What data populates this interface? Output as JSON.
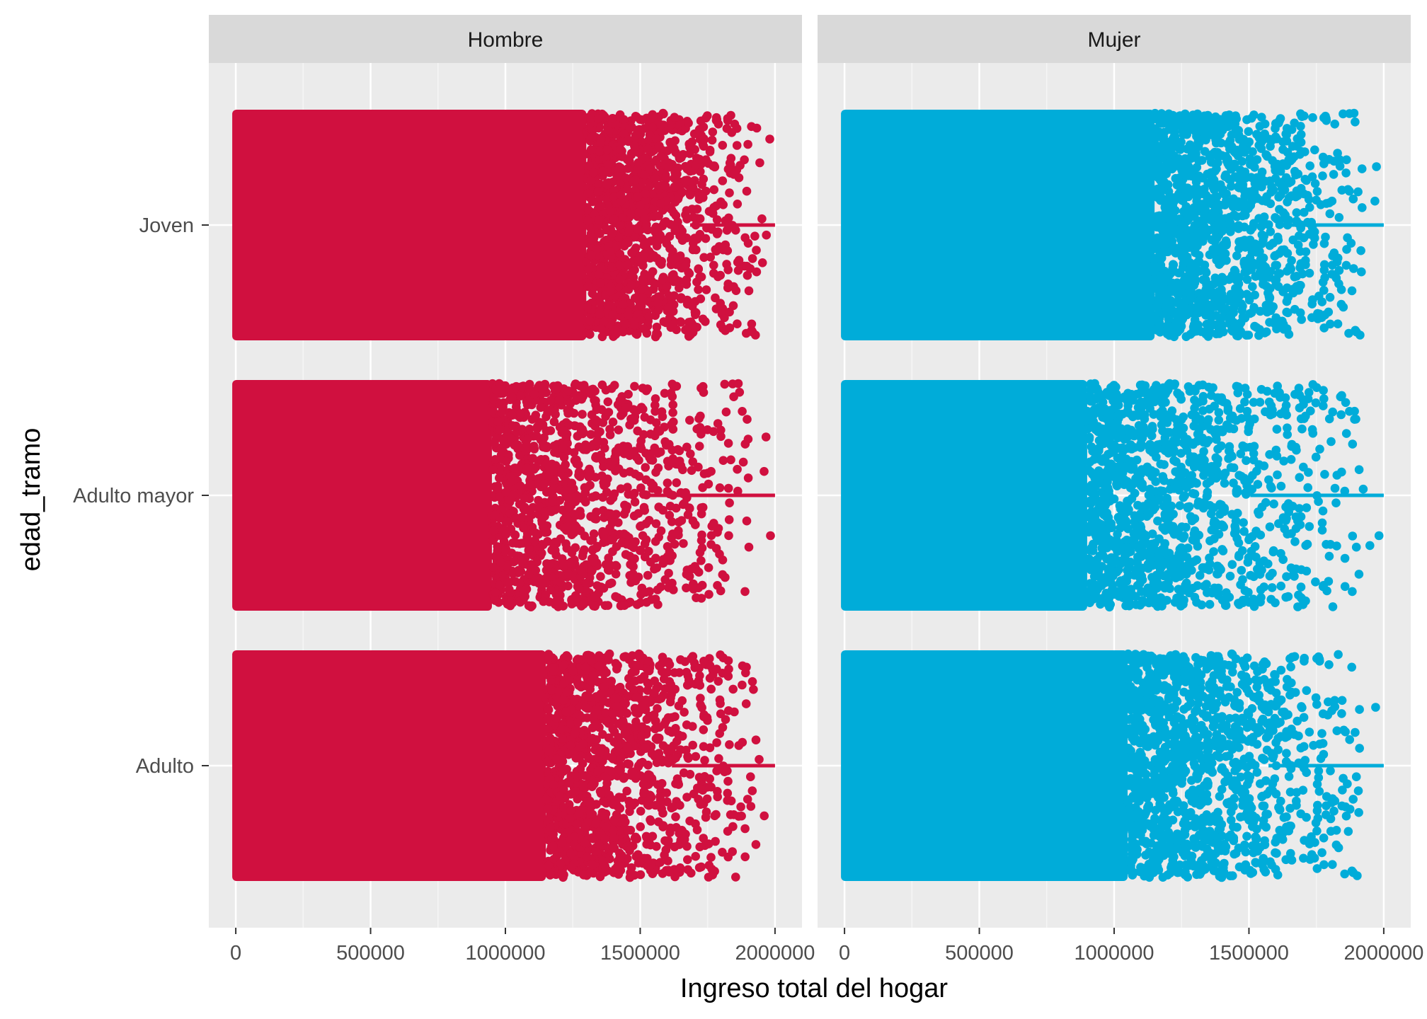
{
  "chart_data": {
    "type": "scatter",
    "subtype": "faceted jitter plot",
    "xlabel": "Ingreso total del hogar",
    "ylabel": "edad_tramo",
    "xlim": [
      -100000,
      2100000
    ],
    "x_ticks": [
      0,
      500000,
      1000000,
      1500000,
      2000000
    ],
    "x_tick_labels": [
      "0",
      "500000",
      "1000000",
      "1500000",
      "2000000"
    ],
    "categories": [
      "Adulto",
      "Adulto mayor",
      "Joven"
    ],
    "grid": true,
    "background": "#EBEBEB",
    "facets": [
      {
        "label": "Hombre",
        "color": "#D0103F",
        "rows": [
          {
            "category": "Joven",
            "dense_until": 1300000,
            "max": 2000000
          },
          {
            "category": "Adulto mayor",
            "dense_until": 950000,
            "max": 2000000
          },
          {
            "category": "Adulto",
            "dense_until": 1150000,
            "max": 2000000
          }
        ]
      },
      {
        "label": "Mujer",
        "color": "#00ACD9",
        "rows": [
          {
            "category": "Joven",
            "dense_until": 1150000,
            "max": 2000000
          },
          {
            "category": "Adulto mayor",
            "dense_until": 900000,
            "max": 2000000
          },
          {
            "category": "Adulto",
            "dense_until": 1050000,
            "max": 2000000
          }
        ]
      }
    ]
  }
}
